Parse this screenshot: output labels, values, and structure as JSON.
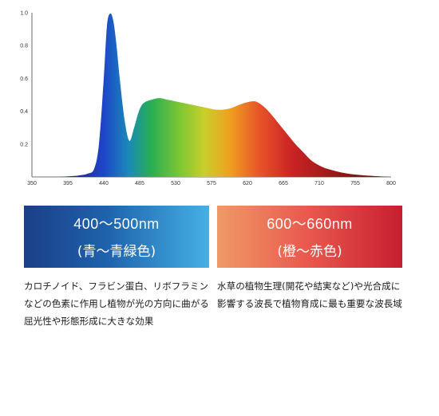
{
  "chart_data": {
    "type": "area",
    "title": "",
    "xlabel": "",
    "ylabel": "",
    "xlim": [
      350,
      800
    ],
    "ylim": [
      0,
      1.0
    ],
    "x_ticks": [
      "350",
      "395",
      "440",
      "485",
      "530",
      "575",
      "620",
      "665",
      "710",
      "755",
      "800"
    ],
    "y_ticks": [
      "0.2",
      "0.4",
      "0.6",
      "0.8",
      "1.0"
    ],
    "grid": false,
    "legend": "none",
    "fill": "visible spectrum gradient (violet to dark red)",
    "series": [
      {
        "name": "",
        "x": [
          350,
          380,
          400,
          410,
          420,
          428,
          434,
          440,
          444,
          448,
          452,
          456,
          460,
          466,
          472,
          478,
          484,
          490,
          500,
          510,
          520,
          530,
          540,
          550,
          560,
          570,
          580,
          590,
          600,
          610,
          620,
          630,
          640,
          650,
          660,
          670,
          680,
          690,
          700,
          710,
          720,
          740,
          760,
          780,
          800
        ],
        "y": [
          0,
          0,
          0.005,
          0.01,
          0.02,
          0.05,
          0.2,
          0.6,
          0.92,
          0.995,
          0.95,
          0.8,
          0.6,
          0.35,
          0.22,
          0.3,
          0.4,
          0.45,
          0.47,
          0.48,
          0.47,
          0.46,
          0.45,
          0.44,
          0.43,
          0.42,
          0.41,
          0.41,
          0.42,
          0.44,
          0.455,
          0.46,
          0.43,
          0.38,
          0.32,
          0.26,
          0.2,
          0.15,
          0.1,
          0.07,
          0.05,
          0.025,
          0.012,
          0.005,
          0
        ]
      }
    ]
  },
  "band_blue": {
    "range": "400～500nm",
    "name": "(青～青緑色)"
  },
  "band_red": {
    "range": "600～660nm",
    "name": "(橙～赤色)"
  },
  "desc_blue": "カロチノイド、フラビン蛋白、リボフラミンなどの色素に作用し植物が光の方向に曲がる屈光性や形態形成に大きな効果",
  "desc_red": "水草の植物生理(開花や結実など)や光合成に影響する波長で植物育成に最も重要な波長域",
  "colors": {
    "blue_start": "#1a3f86",
    "blue_end": "#45b0e4",
    "red_start": "#f09a66",
    "red_end": "#c61e2f"
  }
}
